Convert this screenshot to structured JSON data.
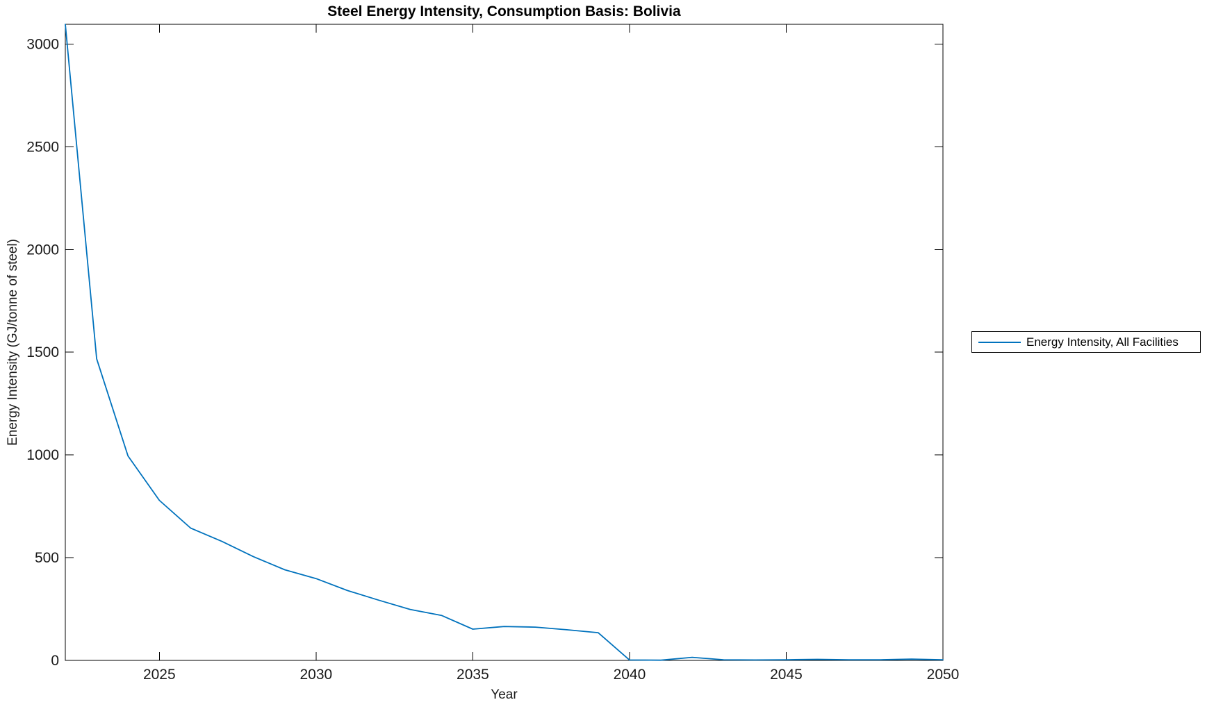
{
  "figure": {
    "background": "#ffffff",
    "axis_color": "#000000",
    "text_color": "#1a1a1a"
  },
  "legend": {
    "border_color": "#000000",
    "entries": [
      {
        "label": "Energy Intensity, All Facilities",
        "color": "#0072BD"
      }
    ]
  },
  "chart_data": {
    "type": "line",
    "title": "Steel Energy Intensity, Consumption Basis: Bolivia",
    "xlabel": "Year",
    "ylabel": "Energy Intensity (GJ/tonne of steel)",
    "xlim": [
      2022,
      2050
    ],
    "ylim": [
      0,
      3096
    ],
    "xticks": [
      2025,
      2030,
      2035,
      2040,
      2045,
      2050
    ],
    "yticks": [
      0,
      500,
      1000,
      1500,
      2000,
      2500,
      3000
    ],
    "grid": false,
    "legend_position": "outside-right",
    "series": [
      {
        "name": "Energy Intensity, All Facilities",
        "color": "#0072BD",
        "x": [
          2022,
          2023,
          2024,
          2025,
          2026,
          2027,
          2028,
          2029,
          2030,
          2031,
          2032,
          2033,
          2034,
          2035,
          2036,
          2037,
          2038,
          2039,
          2040,
          2041,
          2042,
          2043,
          2044,
          2045,
          2046,
          2047,
          2048,
          2049,
          2050
        ],
        "values": [
          3096,
          1468,
          995,
          779,
          644,
          579,
          505,
          441,
          398,
          340,
          293,
          248,
          219,
          152,
          165,
          162,
          149,
          135,
          2,
          1,
          15,
          3,
          2,
          3,
          5,
          3,
          3,
          6,
          3
        ]
      }
    ]
  }
}
